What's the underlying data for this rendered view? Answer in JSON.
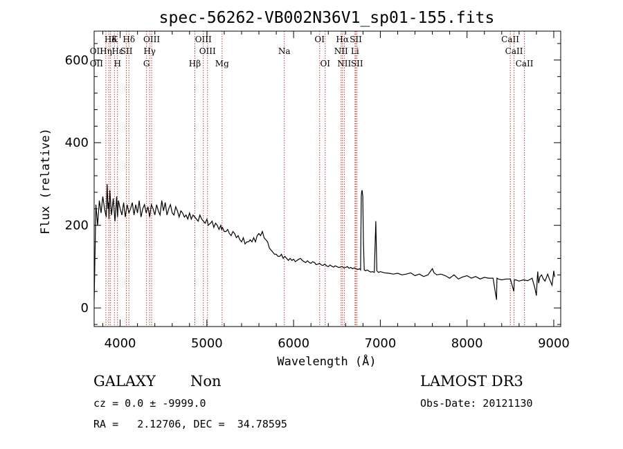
{
  "chart_data": {
    "type": "line",
    "title": "spec-56262-VB002N36V1_sp01-155.fits",
    "xlabel": "Wavelength (Å)",
    "ylabel": "Flux (relative)",
    "xlim": [
      3700,
      9080
    ],
    "ylim": [
      -45,
      670
    ],
    "xticks": [
      4000,
      5000,
      6000,
      7000,
      8000,
      9000
    ],
    "yticks": [
      0,
      200,
      400,
      600
    ],
    "x_minor_step": 200,
    "y_minor_step": 40,
    "series": [
      {
        "name": "spectrum",
        "x": [
          3700,
          3705,
          3720,
          3740,
          3760,
          3780,
          3800,
          3820,
          3840,
          3850,
          3860,
          3866,
          3872,
          3880,
          3900,
          3920,
          3940,
          3960,
          3970,
          3980,
          4000,
          4020,
          4040,
          4060,
          4080,
          4101,
          4120,
          4140,
          4160,
          4180,
          4200,
          4220,
          4240,
          4260,
          4280,
          4300,
          4320,
          4340,
          4360,
          4380,
          4400,
          4420,
          4440,
          4460,
          4480,
          4500,
          4520,
          4540,
          4560,
          4580,
          4600,
          4620,
          4640,
          4660,
          4680,
          4700,
          4720,
          4740,
          4760,
          4780,
          4800,
          4820,
          4840,
          4861,
          4880,
          4900,
          4920,
          4940,
          4960,
          4980,
          5000,
          5007,
          5015,
          5040,
          5060,
          5080,
          5100,
          5120,
          5140,
          5160,
          5170,
          5180,
          5200,
          5220,
          5240,
          5260,
          5280,
          5300,
          5320,
          5340,
          5360,
          5380,
          5400,
          5420,
          5440,
          5460,
          5480,
          5500,
          5520,
          5540,
          5560,
          5580,
          5600,
          5620,
          5640,
          5660,
          5680,
          5700,
          5720,
          5740,
          5760,
          5780,
          5800,
          5820,
          5840,
          5860,
          5880,
          5900,
          5920,
          5940,
          5960,
          5980,
          6000,
          6020,
          6040,
          6060,
          6080,
          6100,
          6120,
          6140,
          6160,
          6180,
          6200,
          6220,
          6240,
          6260,
          6280,
          6300,
          6320,
          6340,
          6360,
          6380,
          6400,
          6420,
          6440,
          6460,
          6480,
          6500,
          6520,
          6540,
          6560,
          6580,
          6600,
          6620,
          6640,
          6660,
          6680,
          6700,
          6720,
          6740,
          6760,
          6772,
          6780,
          6784,
          6790,
          6798,
          6805,
          6815,
          6830,
          6850,
          6870,
          6890,
          6910,
          6930,
          6948,
          6960,
          6980,
          7000,
          7050,
          7100,
          7150,
          7200,
          7250,
          7300,
          7350,
          7400,
          7450,
          7500,
          7550,
          7600,
          7620,
          7650,
          7700,
          7750,
          7800,
          7850,
          7900,
          7950,
          8000,
          8050,
          8100,
          8150,
          8200,
          8250,
          8300,
          8340,
          8345,
          8360,
          8400,
          8450,
          8500,
          8540,
          8545,
          8560,
          8600,
          8650,
          8700,
          8750,
          8780,
          8800,
          8808,
          8815,
          8825,
          8840,
          8860,
          8880,
          8900,
          8930,
          8950,
          8980,
          9000,
          9010
        ],
        "y": [
          20,
          70,
          250,
          200,
          260,
          230,
          270,
          240,
          220,
          300,
          240,
          255,
          215,
          285,
          225,
          265,
          210,
          270,
          220,
          260,
          240,
          225,
          255,
          220,
          250,
          230,
          240,
          255,
          225,
          250,
          230,
          260,
          220,
          240,
          250,
          230,
          245,
          220,
          250,
          240,
          225,
          250,
          235,
          225,
          260,
          235,
          255,
          225,
          240,
          250,
          230,
          225,
          245,
          235,
          220,
          235,
          230,
          220,
          225,
          215,
          230,
          215,
          225,
          220,
          215,
          210,
          225,
          215,
          210,
          205,
          215,
          210,
          200,
          205,
          210,
          195,
          205,
          200,
          190,
          200,
          190,
          195,
          185,
          185,
          190,
          180,
          175,
          185,
          180,
          170,
          175,
          165,
          160,
          170,
          155,
          160,
          160,
          165,
          160,
          170,
          160,
          175,
          180,
          175,
          185,
          170,
          165,
          160,
          145,
          140,
          135,
          130,
          130,
          125,
          125,
          130,
          120,
          125,
          120,
          115,
          120,
          115,
          118,
          112,
          115,
          118,
          120,
          115,
          112,
          110,
          114,
          110,
          108,
          112,
          110,
          105,
          106,
          108,
          104,
          103,
          106,
          102,
          100,
          104,
          101,
          99,
          102,
          100,
          98,
          99,
          100,
          97,
          98,
          100,
          96,
          98,
          95,
          97,
          95,
          93,
          95,
          92,
          270,
          280,
          285,
          270,
          160,
          92,
          90,
          92,
          89,
          87,
          88,
          86,
          210,
          90,
          86,
          88,
          85,
          84,
          82,
          84,
          80,
          82,
          85,
          78,
          82,
          76,
          80,
          95,
          85,
          80,
          82,
          78,
          72,
          80,
          70,
          75,
          78,
          72,
          76,
          70,
          74,
          72,
          72,
          20,
          72,
          70,
          68,
          70,
          70,
          40,
          68,
          68,
          65,
          68,
          66,
          72,
          50,
          30,
          65,
          88,
          60,
          75,
          80,
          70,
          65,
          82,
          70,
          55,
          90,
          75
        ]
      }
    ],
    "lines": [
      {
        "wl": 3727,
        "row": 1,
        "label": "OII"
      },
      {
        "wl": 3727,
        "row": 2,
        "label": "OII"
      },
      {
        "wl": 3835,
        "row": 1,
        "label": "Hη"
      },
      {
        "wl": 3889,
        "row": 0,
        "label": "Hδ"
      },
      {
        "wl": 3934,
        "row": 0,
        "label": "K"
      },
      {
        "wl": 3969,
        "row": 1,
        "label": "Hε"
      },
      {
        "wl": 3969,
        "row": 2,
        "label": "H"
      },
      {
        "wl": 4101,
        "row": 0,
        "label": "Hδ"
      },
      {
        "wl": 4072,
        "row": 1,
        "label": "SII"
      },
      {
        "wl": 4363,
        "row": 0,
        "label": "OIII"
      },
      {
        "wl": 4340,
        "row": 1,
        "label": "Hγ"
      },
      {
        "wl": 4304,
        "row": 2,
        "label": "G"
      },
      {
        "wl": 4959,
        "row": 0,
        "label": "OIII"
      },
      {
        "wl": 5007,
        "row": 1,
        "label": "OIII"
      },
      {
        "wl": 4861,
        "row": 2,
        "label": "Hβ"
      },
      {
        "wl": 5175,
        "row": 2,
        "label": "Mg"
      },
      {
        "wl": 5893,
        "row": 1,
        "label": "Na"
      },
      {
        "wl": 6300,
        "row": 0,
        "label": "OI"
      },
      {
        "wl": 6364,
        "row": 2,
        "label": "OI"
      },
      {
        "wl": 6563,
        "row": 0,
        "label": "Hα"
      },
      {
        "wl": 6548,
        "row": 1,
        "label": "NII"
      },
      {
        "wl": 6584,
        "row": 2,
        "label": "NII"
      },
      {
        "wl": 6717,
        "row": 0,
        "label": "SII"
      },
      {
        "wl": 6708,
        "row": 1,
        "label": "Li"
      },
      {
        "wl": 6731,
        "row": 2,
        "label": "SII"
      },
      {
        "wl": 8498,
        "row": 0,
        "label": "CaII"
      },
      {
        "wl": 8542,
        "row": 1,
        "label": "CaII"
      },
      {
        "wl": 8662,
        "row": 2,
        "label": "CaII"
      }
    ],
    "line_wavelengths_drawn": [
      3835,
      3869,
      3889,
      3934,
      3969,
      4072,
      4101,
      4304,
      4340,
      4363,
      4861,
      4959,
      5007,
      5175,
      5893,
      6300,
      6364,
      6548,
      6563,
      6584,
      6708,
      6717,
      6731,
      8498,
      8542,
      8662
    ]
  },
  "info": {
    "class_label": "GALAXY",
    "subclass_label": "Non",
    "survey_label": "LAMOST DR3",
    "cz_line": "cz = 0.0 ± -9999.0",
    "obs_date_line": "Obs-Date: 20121130",
    "coords_line": "RA =   2.12706, DEC =  34.78595"
  },
  "colors": {
    "line_marker": "#c0392b",
    "spectrum": "#000000",
    "axes": "#000000"
  }
}
